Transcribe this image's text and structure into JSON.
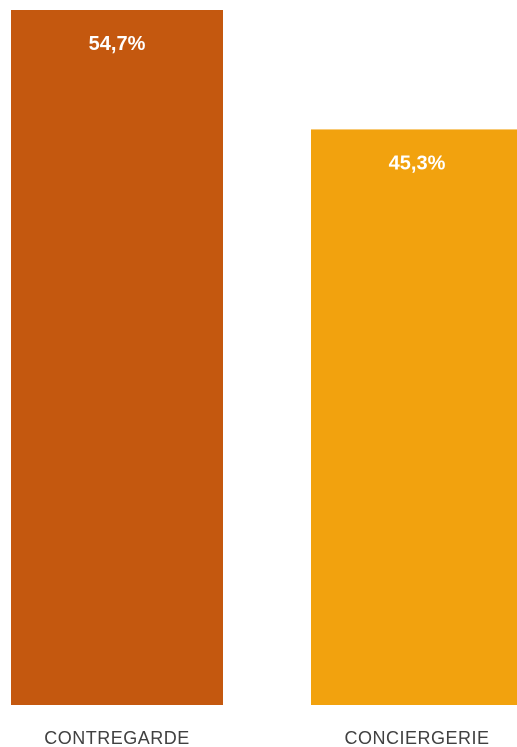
{
  "chart_data": {
    "type": "bar",
    "title": "",
    "xlabel": "",
    "ylabel": "",
    "categories": [
      "CONTREGARDE",
      "CONCIERGERIE"
    ],
    "values": [
      54.7,
      45.3
    ],
    "value_labels": [
      "54,7%",
      "45,3%"
    ],
    "colors": [
      "#c4580f",
      "#f2a20e"
    ],
    "ylim": [
      0,
      54.7
    ],
    "grid": false,
    "legend": "none"
  }
}
